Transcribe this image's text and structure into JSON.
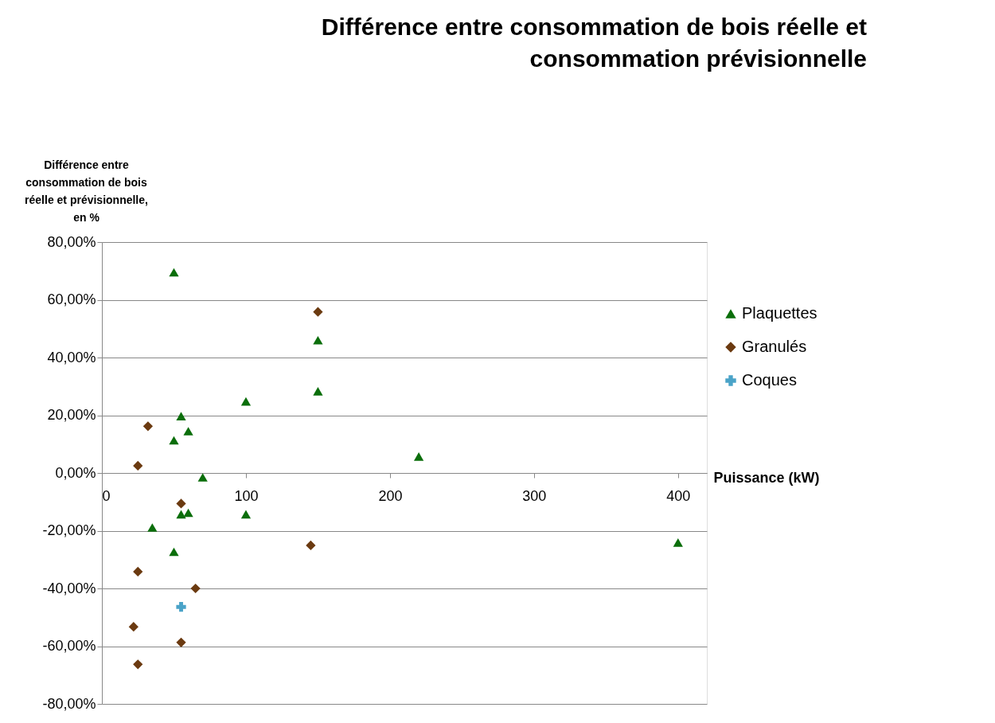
{
  "chart_data": {
    "type": "scatter",
    "title": "Différence entre consommation de bois réelle et consommation prévisionnelle",
    "xlabel": "Puissance (kW)",
    "ylabel": "Différence entre consommation de bois réelle et prévisionnelle, en %",
    "xlim": [
      0,
      420
    ],
    "xticks": [
      0,
      100,
      200,
      300,
      400
    ],
    "ylim": [
      -80,
      80
    ],
    "yticks": [
      {
        "value": 80,
        "label": "80,00%"
      },
      {
        "value": 60,
        "label": "60,00%"
      },
      {
        "value": 40,
        "label": "40,00%"
      },
      {
        "value": 20,
        "label": "20,00%"
      },
      {
        "value": 0,
        "label": "0,00%"
      },
      {
        "value": -20,
        "label": "-20,00%"
      },
      {
        "value": -40,
        "label": "-40,00%"
      },
      {
        "value": -60,
        "label": "-60,00%"
      },
      {
        "value": -80,
        "label": "-80,00%"
      }
    ],
    "grid": "y",
    "legend": "right",
    "series": [
      {
        "name": "Plaquettes",
        "color": "#0b6e0b",
        "marker": "triangle",
        "x": [
          50,
          150,
          150,
          100,
          55,
          60,
          50,
          220,
          70,
          60,
          55,
          100,
          35,
          50,
          400
        ],
        "values": [
          69.5,
          46,
          28.3,
          24.8,
          19.7,
          14.5,
          11.3,
          5.7,
          -1.5,
          -13.8,
          -14.3,
          -14.3,
          -18.9,
          -27.3,
          -24.1
        ]
      },
      {
        "name": "Granulés",
        "color": "#6b3a10",
        "marker": "diamond",
        "x": [
          150,
          32,
          25,
          55,
          145,
          25,
          65,
          22,
          55,
          25
        ],
        "values": [
          55.8,
          16.2,
          2.5,
          -10.6,
          -25.1,
          -34.2,
          -40,
          -53.3,
          -58.7,
          -66.3
        ]
      },
      {
        "name": "Coques",
        "color": "#4aa3c8",
        "marker": "cross",
        "x": [
          55
        ],
        "values": [
          -46.4
        ]
      }
    ]
  }
}
